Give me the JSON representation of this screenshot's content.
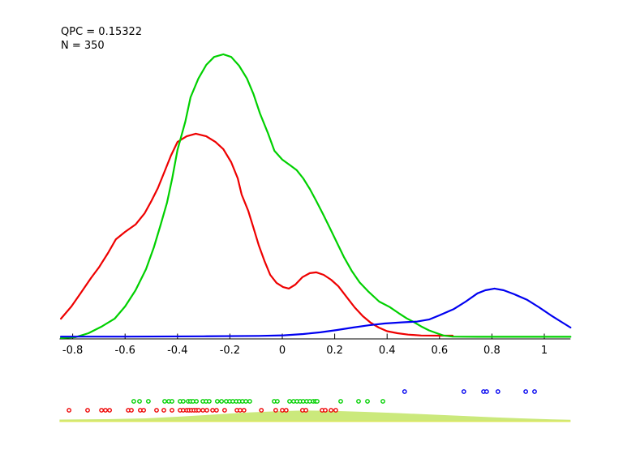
{
  "figure": {
    "annotation_line1": "QPC = 0.15322",
    "annotation_line2": "N = 350"
  },
  "colors": {
    "background": "#ffffff",
    "axis": "#000000",
    "text": "#000000",
    "red_series": "#ee0000",
    "green_series": "#00d000",
    "blue_series": "#0000f0",
    "sum_fill": "#cbe97c",
    "sum_line": "#dde75c",
    "marker_face": "#ffffff"
  },
  "chart_data": {
    "type": "line",
    "title": "",
    "xlabel": "",
    "ylabel": "",
    "annotations": [
      "QPC = 0.15322",
      "N = 350"
    ],
    "xlim": [
      -0.85,
      1.1
    ],
    "ylim": [
      0,
      1.05
    ],
    "grid": false,
    "legend": null,
    "x_tick_values": [
      -0.8,
      -0.6,
      -0.4,
      -0.2,
      0,
      0.2,
      0.4,
      0.6,
      0.8,
      1
    ],
    "x_tick_labels": [
      "-0.8",
      "-0.6",
      "-0.4",
      "-0.2",
      "0",
      "0.2",
      "0.4",
      "0.6",
      "0.8",
      "1"
    ],
    "series": [
      {
        "name": "red-class-density",
        "color_key": "red_series",
        "points": [
          [
            -0.845,
            0.071
          ],
          [
            -0.805,
            0.114
          ],
          [
            -0.77,
            0.16
          ],
          [
            -0.73,
            0.214
          ],
          [
            -0.7,
            0.251
          ],
          [
            -0.665,
            0.302
          ],
          [
            -0.635,
            0.35
          ],
          [
            -0.6,
            0.376
          ],
          [
            -0.56,
            0.402
          ],
          [
            -0.525,
            0.442
          ],
          [
            -0.5,
            0.484
          ],
          [
            -0.475,
            0.53
          ],
          [
            -0.45,
            0.587
          ],
          [
            -0.425,
            0.644
          ],
          [
            -0.4,
            0.692
          ],
          [
            -0.365,
            0.712
          ],
          [
            -0.33,
            0.721
          ],
          [
            -0.29,
            0.712
          ],
          [
            -0.255,
            0.692
          ],
          [
            -0.225,
            0.667
          ],
          [
            -0.195,
            0.621
          ],
          [
            -0.17,
            0.564
          ],
          [
            -0.155,
            0.507
          ],
          [
            -0.13,
            0.45
          ],
          [
            -0.11,
            0.39
          ],
          [
            -0.09,
            0.33
          ],
          [
            -0.068,
            0.274
          ],
          [
            -0.046,
            0.225
          ],
          [
            -0.022,
            0.197
          ],
          [
            0.003,
            0.182
          ],
          [
            0.025,
            0.177
          ],
          [
            0.05,
            0.191
          ],
          [
            0.077,
            0.217
          ],
          [
            0.105,
            0.231
          ],
          [
            0.13,
            0.234
          ],
          [
            0.158,
            0.225
          ],
          [
            0.186,
            0.208
          ],
          [
            0.214,
            0.185
          ],
          [
            0.245,
            0.148
          ],
          [
            0.276,
            0.111
          ],
          [
            0.307,
            0.08
          ],
          [
            0.337,
            0.057
          ],
          [
            0.368,
            0.04
          ],
          [
            0.4,
            0.027
          ],
          [
            0.44,
            0.02
          ],
          [
            0.48,
            0.015
          ],
          [
            0.53,
            0.012
          ],
          [
            0.6,
            0.0115
          ],
          [
            0.65,
            0.0115
          ]
        ]
      },
      {
        "name": "green-class-density",
        "color_key": "green_series",
        "points": [
          [
            -0.845,
            0.003
          ],
          [
            -0.79,
            0.006
          ],
          [
            -0.74,
            0.02
          ],
          [
            -0.69,
            0.043
          ],
          [
            -0.64,
            0.071
          ],
          [
            -0.6,
            0.114
          ],
          [
            -0.56,
            0.171
          ],
          [
            -0.52,
            0.245
          ],
          [
            -0.49,
            0.322
          ],
          [
            -0.465,
            0.399
          ],
          [
            -0.44,
            0.479
          ],
          [
            -0.42,
            0.564
          ],
          [
            -0.4,
            0.664
          ],
          [
            -0.37,
            0.764
          ],
          [
            -0.35,
            0.849
          ],
          [
            -0.32,
            0.915
          ],
          [
            -0.29,
            0.963
          ],
          [
            -0.26,
            0.991
          ],
          [
            -0.225,
            1.0
          ],
          [
            -0.195,
            0.991
          ],
          [
            -0.165,
            0.96
          ],
          [
            -0.135,
            0.915
          ],
          [
            -0.11,
            0.86
          ],
          [
            -0.085,
            0.792
          ],
          [
            -0.055,
            0.724
          ],
          [
            -0.03,
            0.661
          ],
          [
            0.0,
            0.63
          ],
          [
            0.03,
            0.61
          ],
          [
            0.055,
            0.593
          ],
          [
            0.08,
            0.564
          ],
          [
            0.105,
            0.527
          ],
          [
            0.13,
            0.484
          ],
          [
            0.155,
            0.439
          ],
          [
            0.18,
            0.393
          ],
          [
            0.205,
            0.345
          ],
          [
            0.235,
            0.288
          ],
          [
            0.265,
            0.239
          ],
          [
            0.295,
            0.199
          ],
          [
            0.33,
            0.165
          ],
          [
            0.37,
            0.131
          ],
          [
            0.41,
            0.112
          ],
          [
            0.445,
            0.09
          ],
          [
            0.475,
            0.072
          ],
          [
            0.5,
            0.06
          ],
          [
            0.53,
            0.044
          ],
          [
            0.56,
            0.03
          ],
          [
            0.59,
            0.02
          ],
          [
            0.615,
            0.012
          ],
          [
            0.65,
            0.008
          ],
          [
            0.75,
            0.0075
          ],
          [
            0.9,
            0.0075
          ],
          [
            1.1,
            0.0075
          ]
        ]
      },
      {
        "name": "blue-class-density",
        "color_key": "blue_series",
        "points": [
          [
            -0.845,
            0.008
          ],
          [
            -0.6,
            0.008
          ],
          [
            -0.3,
            0.009
          ],
          [
            -0.09,
            0.0105
          ],
          [
            0.005,
            0.0125
          ],
          [
            0.08,
            0.017
          ],
          [
            0.145,
            0.023
          ],
          [
            0.207,
            0.031
          ],
          [
            0.269,
            0.04
          ],
          [
            0.33,
            0.048
          ],
          [
            0.39,
            0.054
          ],
          [
            0.455,
            0.058
          ],
          [
            0.515,
            0.061
          ],
          [
            0.56,
            0.068
          ],
          [
            0.6,
            0.083
          ],
          [
            0.655,
            0.105
          ],
          [
            0.7,
            0.131
          ],
          [
            0.745,
            0.16
          ],
          [
            0.775,
            0.171
          ],
          [
            0.81,
            0.177
          ],
          [
            0.845,
            0.171
          ],
          [
            0.885,
            0.157
          ],
          [
            0.935,
            0.137
          ],
          [
            0.98,
            0.111
          ],
          [
            1.025,
            0.083
          ],
          [
            1.07,
            0.057
          ],
          [
            1.1,
            0.04
          ]
        ]
      }
    ],
    "rug_markers": [
      {
        "name": "red-class-points",
        "color_key": "red_series",
        "row": "red",
        "x": [
          -0.814,
          -0.743,
          -0.69,
          -0.675,
          -0.659,
          -0.588,
          -0.576,
          -0.542,
          -0.529,
          -0.48,
          -0.452,
          -0.421,
          -0.39,
          -0.378,
          -0.365,
          -0.356,
          -0.347,
          -0.337,
          -0.328,
          -0.319,
          -0.303,
          -0.288,
          -0.266,
          -0.251,
          -0.22,
          -0.173,
          -0.161,
          -0.146,
          -0.08,
          -0.025,
          0.0,
          0.015,
          0.077,
          0.09,
          0.152,
          0.164,
          0.186,
          0.204
        ]
      },
      {
        "name": "green-class-points",
        "color_key": "green_series",
        "row": "green",
        "x": [
          -0.567,
          -0.545,
          -0.511,
          -0.449,
          -0.433,
          -0.421,
          -0.39,
          -0.378,
          -0.359,
          -0.35,
          -0.341,
          -0.328,
          -0.303,
          -0.291,
          -0.279,
          -0.248,
          -0.232,
          -0.214,
          -0.201,
          -0.189,
          -0.176,
          -0.164,
          -0.152,
          -0.139,
          -0.124,
          -0.031,
          -0.019,
          0.028,
          0.043,
          0.056,
          0.068,
          0.08,
          0.093,
          0.105,
          0.118,
          0.127,
          0.133,
          0.223,
          0.291,
          0.325,
          0.384
        ]
      },
      {
        "name": "blue-class-points",
        "color_key": "blue_series",
        "row": "blue",
        "x": [
          0.467,
          0.693,
          0.768,
          0.78,
          0.823,
          0.929,
          0.963
        ]
      }
    ],
    "sum_density": {
      "note": "overall density strip under rug, height in px above its baseline",
      "points": [
        [
          -0.85,
          2
        ],
        [
          -0.67,
          2.5
        ],
        [
          -0.52,
          3.5
        ],
        [
          -0.4,
          5.5
        ],
        [
          -0.27,
          8
        ],
        [
          -0.15,
          10.5
        ],
        [
          -0.02,
          12.2
        ],
        [
          0.085,
          13.2
        ],
        [
          0.19,
          12.7
        ],
        [
          0.315,
          11.5
        ],
        [
          0.44,
          10
        ],
        [
          0.565,
          8.2
        ],
        [
          0.69,
          6.5
        ],
        [
          0.81,
          4.7
        ],
        [
          0.935,
          3.2
        ],
        [
          1.03,
          2.3
        ],
        [
          1.1,
          1.8
        ]
      ]
    }
  }
}
